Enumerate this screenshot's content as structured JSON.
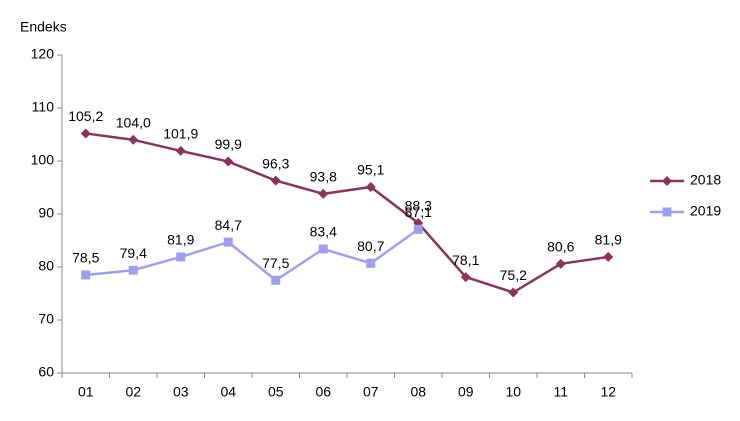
{
  "chart_data": {
    "type": "line",
    "y_label": "Endeks",
    "categories": [
      "01",
      "02",
      "03",
      "04",
      "05",
      "06",
      "07",
      "08",
      "09",
      "10",
      "11",
      "12"
    ],
    "ylim": [
      60,
      120
    ],
    "yticks": [
      60,
      70,
      80,
      90,
      100,
      110,
      120
    ],
    "grid": false,
    "legend": "right",
    "series": [
      {
        "name": "2018",
        "color": "#8b3358",
        "marker": "diamond",
        "values": [
          105.2,
          104.0,
          101.9,
          99.9,
          96.3,
          93.8,
          95.1,
          88.3,
          78.1,
          75.2,
          80.6,
          81.9
        ],
        "value_labels": [
          "105,2",
          "104,0",
          "101,9",
          "99,9",
          "96,3",
          "93,8",
          "95,1",
          "88,3",
          "78,1",
          "75,2",
          "80,6",
          "81,9"
        ]
      },
      {
        "name": "2019",
        "color": "#9f9ff0",
        "marker": "square",
        "values": [
          78.5,
          79.4,
          81.9,
          84.7,
          77.5,
          83.4,
          80.7,
          87.1,
          null,
          null,
          null,
          null
        ],
        "value_labels": [
          "78,5",
          "79,4",
          "81,9",
          "84,7",
          "77,5",
          "83,4",
          "80,7",
          "87,1",
          null,
          null,
          null,
          null
        ]
      }
    ]
  }
}
